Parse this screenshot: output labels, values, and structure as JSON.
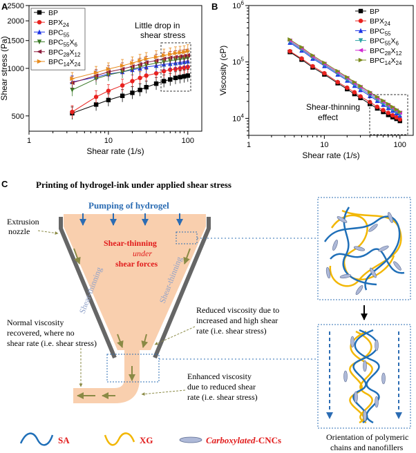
{
  "chart_data": [
    {
      "panel": "A",
      "type": "line",
      "xscale": "log",
      "yscale": "log",
      "xlabel": "Shear rate (1/s)",
      "ylabel": "Shear stress (Pa)",
      "xlim": [
        1,
        150
      ],
      "ylim": [
        400,
        2500
      ],
      "xticks": [
        1,
        10,
        100
      ],
      "yticks": [
        500,
        1000,
        1500,
        2000,
        2500
      ],
      "annotation": "Little drop in shear stress",
      "x": [
        3.5,
        7,
        10,
        15,
        20,
        25,
        30,
        40,
        50,
        60,
        70,
        80,
        90,
        100
      ],
      "series": [
        {
          "name": "BP",
          "color": "#000000",
          "marker": "square",
          "values": [
            520,
            590,
            630,
            670,
            700,
            730,
            760,
            800,
            830,
            850,
            870,
            880,
            890,
            900
          ]
        },
        {
          "name": "BPX24",
          "color": "#e8221f",
          "marker": "circle",
          "values": [
            530,
            660,
            720,
            780,
            830,
            870,
            900,
            930,
            960,
            980,
            990,
            1000,
            1010,
            1020
          ]
        },
        {
          "name": "BPC55",
          "color": "#1c33e6",
          "marker": "triangle-up",
          "values": [
            820,
            880,
            920,
            950,
            980,
            1000,
            1020,
            1040,
            1060,
            1070,
            1080,
            1090,
            1100,
            1110
          ]
        },
        {
          "name": "BPC55X6",
          "color": "#3a7a27",
          "marker": "triangle-down",
          "values": [
            730,
            860,
            910,
            950,
            990,
            1020,
            1050,
            1080,
            1100,
            1120,
            1130,
            1140,
            1150,
            1160
          ]
        },
        {
          "name": "BPC28X12",
          "color": "#8b1a3a",
          "marker": "triangle-left",
          "values": [
            810,
            900,
            950,
            990,
            1030,
            1060,
            1090,
            1120,
            1150,
            1170,
            1180,
            1190,
            1200,
            1210
          ]
        },
        {
          "name": "BPC14X24",
          "color": "#e88b1d",
          "marker": "triangle-right",
          "values": [
            860,
            940,
            990,
            1040,
            1080,
            1120,
            1150,
            1180,
            1210,
            1230,
            1250,
            1260,
            1270,
            1290
          ]
        }
      ]
    },
    {
      "panel": "B",
      "type": "line",
      "xscale": "log",
      "yscale": "log",
      "xlabel": "Shear rate (1/s)",
      "ylabel": "Viscosity (cP)",
      "xlim": [
        1,
        150
      ],
      "ylim": [
        5000,
        1000000
      ],
      "xticks": [
        1,
        10,
        100
      ],
      "yticks": [
        10000,
        100000,
        1000000
      ],
      "annotation": "Shear-thinning effect",
      "x": [
        3.5,
        5,
        7,
        10,
        15,
        20,
        25,
        30,
        40,
        50,
        60,
        70,
        80,
        90,
        100
      ],
      "series": [
        {
          "name": "BP",
          "color": "#000000",
          "marker": "square",
          "values": [
            150000,
            110000,
            80000,
            60000,
            42000,
            33000,
            27000,
            23000,
            18000,
            15000,
            13000,
            11500,
            10500,
            9800,
            9000
          ]
        },
        {
          "name": "BPX24",
          "color": "#e8221f",
          "marker": "circle",
          "values": [
            155000,
            115000,
            84000,
            63000,
            44000,
            35000,
            29000,
            24500,
            19500,
            16000,
            14000,
            12500,
            11300,
            10400,
            9600
          ]
        },
        {
          "name": "BPC55",
          "color": "#1c33e6",
          "marker": "triangle-up",
          "values": [
            220000,
            160000,
            115000,
            85000,
            60000,
            47000,
            38000,
            32000,
            25000,
            20500,
            17500,
            15300,
            13700,
            12400,
            11300
          ]
        },
        {
          "name": "BPC55X6",
          "color": "#2ea3a6",
          "marker": "triangle-down",
          "values": [
            230000,
            168000,
            120000,
            89000,
            63000,
            49000,
            40000,
            34000,
            26500,
            21700,
            18500,
            16200,
            14400,
            13000,
            11800
          ]
        },
        {
          "name": "BPC28X12",
          "color": "#d22cd2",
          "marker": "triangle-left",
          "values": [
            240000,
            175000,
            125000,
            93000,
            66000,
            52000,
            42000,
            36000,
            28000,
            23000,
            19700,
            17200,
            15300,
            13800,
            12600
          ]
        },
        {
          "name": "BPC14X24",
          "color": "#7a8a1c",
          "marker": "triangle-right",
          "values": [
            250000,
            183000,
            131000,
            97000,
            69000,
            54000,
            44000,
            37500,
            29300,
            24100,
            20600,
            18000,
            16000,
            14400,
            13100
          ]
        }
      ]
    }
  ],
  "panels": {
    "a": {
      "letter": "A",
      "legend": [
        {
          "base": "BP",
          "sub1": "",
          "mid": "",
          "sub2": ""
        },
        {
          "base": "BPX",
          "sub1": "24",
          "mid": "",
          "sub2": ""
        },
        {
          "base": "BPC",
          "sub1": "55",
          "mid": "",
          "sub2": ""
        },
        {
          "base": "BPC",
          "sub1": "55",
          "mid": "X",
          "sub2": "6"
        },
        {
          "base": "BPC",
          "sub1": "28",
          "mid": "X",
          "sub2": "12"
        },
        {
          "base": "BPC",
          "sub1": "14",
          "mid": "X",
          "sub2": "24"
        }
      ],
      "annotation_lines": [
        "Little drop in",
        "shear stress"
      ]
    },
    "b": {
      "letter": "B",
      "legend": [
        {
          "base": "BP",
          "sub1": "",
          "mid": "",
          "sub2": ""
        },
        {
          "base": "BPX",
          "sub1": "24",
          "mid": "",
          "sub2": ""
        },
        {
          "base": "BPC",
          "sub1": "55",
          "mid": "",
          "sub2": ""
        },
        {
          "base": "BPC",
          "sub1": "55",
          "mid": "X",
          "sub2": "6"
        },
        {
          "base": "BPC",
          "sub1": "28",
          "mid": "X",
          "sub2": "12"
        },
        {
          "base": "BPC",
          "sub1": "14",
          "mid": "X",
          "sub2": "24"
        }
      ],
      "annotation_lines": [
        "Shear-thinning",
        "effect"
      ],
      "ytick_labels": [
        {
          "base": "10",
          "exp": "4"
        },
        {
          "base": "10",
          "exp": "5"
        },
        {
          "base": "10",
          "exp": "6"
        }
      ]
    },
    "c": {
      "letter": "C",
      "title": "Printing of hydrogel-ink under applied shear stress",
      "pumping": "Pumping of hydrogel",
      "extrusion": [
        "Extrusion",
        "nozzle"
      ],
      "thinning": [
        "Shear-thinning",
        "under",
        "shear forces"
      ],
      "left_wall": "Shear-thinning",
      "right_wall": "Shear-thinning",
      "normal": [
        "Normal viscosity",
        "recovered, where no",
        "shear rate (i.e. shear stress)"
      ],
      "reduced": [
        "Reduced viscosity due to",
        "increased and high shear",
        "rate (i.e. shear stress)"
      ],
      "enhanced": [
        "Enhanced viscosity",
        "due to reduced shear",
        "rate (i.e. shear stress)"
      ],
      "orientation": [
        "Orientation of polymeric",
        "chains and nanofillers"
      ],
      "legend_sa": "SA",
      "legend_xg": "XG",
      "legend_cnc_italic": "Carboxylated",
      "legend_cnc_rest": "-CNCs"
    }
  },
  "colors": {
    "sa": "#1f6fb8",
    "xg": "#f2b705",
    "cnc": "#aeb9d8",
    "gel": "#f9cfae",
    "arrow_olive": "#8a8a45",
    "red_text": "#e11b1b",
    "blue_text": "#2b6cb3",
    "wall": "#666666"
  }
}
